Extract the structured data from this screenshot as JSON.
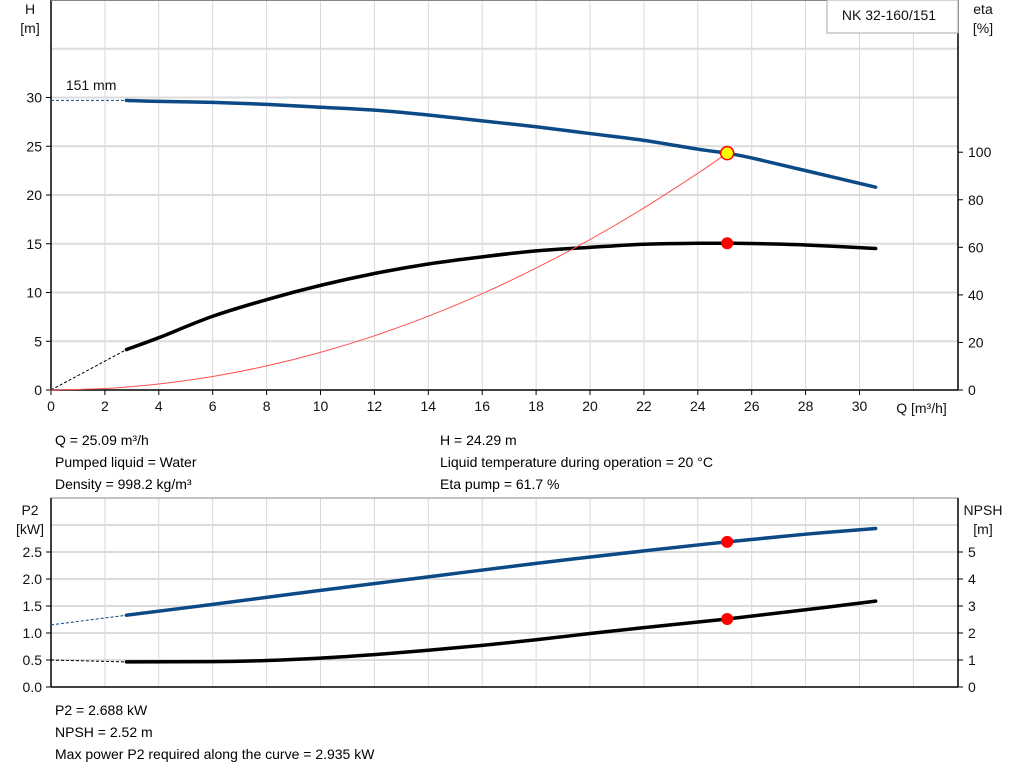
{
  "chart_data": [
    {
      "type": "line",
      "title": "NK 32-160/151",
      "xlabel": "Q [m³/h]",
      "ylabel": "H\n[m]",
      "y2label": "eta\n[%]",
      "ylabel_lines": [
        "H",
        "[m]"
      ],
      "y2label_lines": [
        "eta",
        "[%]"
      ],
      "xlim": [
        0,
        33
      ],
      "ylim": [
        0,
        40
      ],
      "y2lim": [
        0,
        164
      ],
      "grid": true,
      "xticks": [
        0,
        2,
        4,
        6,
        8,
        10,
        12,
        14,
        16,
        18,
        20,
        22,
        24,
        26,
        28,
        30
      ],
      "yticks": [
        0,
        5,
        10,
        15,
        20,
        25,
        30
      ],
      "y2ticks": [
        0,
        20,
        40,
        60,
        80,
        100
      ],
      "curve_label": "151 mm",
      "series": [
        {
          "name": "H",
          "axis": "left",
          "color": "#0b4a86",
          "x": [
            2.8,
            4,
            6,
            8,
            10,
            12,
            14,
            16,
            18,
            20,
            22,
            24,
            25.09,
            26,
            28,
            30.6
          ],
          "y": [
            29.7,
            29.6,
            29.5,
            29.3,
            29.0,
            28.7,
            28.2,
            27.6,
            27.0,
            26.3,
            25.6,
            24.7,
            24.29,
            23.8,
            22.5,
            20.8
          ],
          "extrapolated_from": [
            0,
            29.7
          ]
        },
        {
          "name": "eta",
          "axis": "right",
          "color": "#000000",
          "x": [
            2.8,
            4,
            6,
            8,
            10,
            12,
            14,
            16,
            18,
            20,
            22,
            24,
            25.09,
            26,
            28,
            30.6
          ],
          "y": [
            17,
            22,
            31,
            38,
            44,
            49,
            53,
            56,
            58.5,
            60,
            61.3,
            61.7,
            61.7,
            61.6,
            61.0,
            59.5
          ],
          "extrapolated_from": [
            0,
            0
          ]
        },
        {
          "name": "system",
          "axis": "left",
          "color": "#ff5050",
          "x": [
            0,
            2,
            4,
            6,
            8,
            10,
            12,
            14,
            16,
            18,
            20,
            22,
            24,
            25.09
          ],
          "y": [
            0,
            0.15,
            0.62,
            1.39,
            2.47,
            3.86,
            5.56,
            7.57,
            9.88,
            12.51,
            15.43,
            18.67,
            22.23,
            24.29
          ]
        }
      ],
      "duty_point": {
        "Q": 25.09,
        "H": 24.29,
        "eta": 61.7
      }
    },
    {
      "type": "line",
      "ylabel_lines": [
        "P2",
        "[kW]"
      ],
      "y2label_lines": [
        "NPSH",
        "[m]"
      ],
      "xlim": [
        0,
        33
      ],
      "ylim": [
        0,
        3.5
      ],
      "y2lim": [
        0,
        7
      ],
      "grid": true,
      "yticks": [
        "0.0",
        "0.5",
        "1.0",
        "1.5",
        "2.0",
        "2.5"
      ],
      "y2ticks": [
        "0",
        "1",
        "2",
        "3",
        "4",
        "5"
      ],
      "series": [
        {
          "name": "P2",
          "axis": "left",
          "color": "#0b4a86",
          "x": [
            2.8,
            6,
            10,
            14,
            18,
            22,
            25.09,
            28,
            30.6
          ],
          "y": [
            1.33,
            1.53,
            1.79,
            2.04,
            2.29,
            2.52,
            2.688,
            2.83,
            2.935
          ],
          "extrapolated_from": [
            0,
            1.15
          ]
        },
        {
          "name": "NPSH",
          "axis": "right",
          "color": "#000000",
          "x": [
            2.8,
            6,
            8,
            10,
            12,
            14,
            16,
            18,
            20,
            22,
            25.09,
            28,
            30.6
          ],
          "y": [
            0.93,
            0.94,
            0.98,
            1.07,
            1.2,
            1.36,
            1.54,
            1.75,
            1.98,
            2.2,
            2.52,
            2.86,
            3.18
          ],
          "extrapolated_from": [
            0,
            1.0
          ]
        }
      ],
      "duty_point": {
        "Q": 25.09,
        "P2": 2.688,
        "NPSH": 2.52
      }
    }
  ],
  "info_top": {
    "left": [
      "Q = 25.09 m³/h",
      "Pumped liquid = Water",
      "Density = 998.2 kg/m³"
    ],
    "right": [
      "H = 24.29 m",
      "Liquid temperature during operation = 20 °C",
      "Eta pump = 61.7 %"
    ]
  },
  "info_bottom": [
    "P2 = 2.688 kW",
    "NPSH = 2.52 m",
    "Max power P2 required along the curve = 2.935 kW"
  ],
  "colors": {
    "blue": "#0b4a86",
    "black": "#000000",
    "red": "#ff0000",
    "yellow": "#ffff00",
    "grid": "#d9d9d9"
  }
}
